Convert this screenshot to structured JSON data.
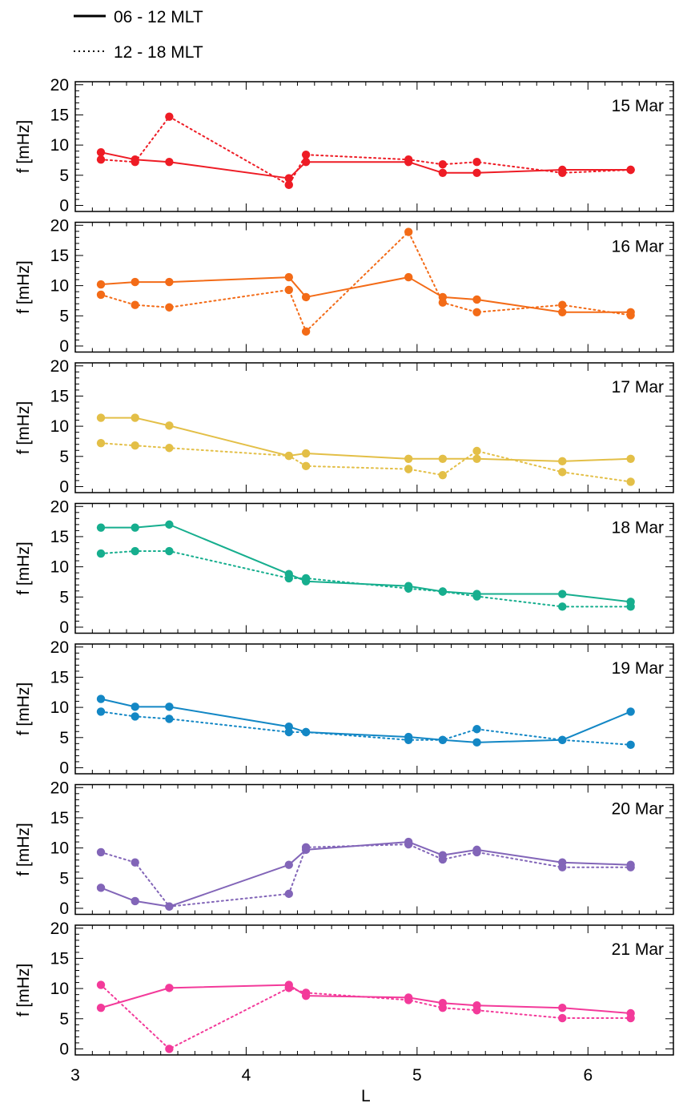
{
  "chart_data": {
    "type": "line",
    "xlabel": "L",
    "ylabel": "f [mHz]",
    "xlim": [
      3,
      6.5
    ],
    "ylim": [
      -1,
      20.5
    ],
    "x_ticks": [
      "3",
      "4",
      "5",
      "6"
    ],
    "y_ticks": [
      "0",
      "5",
      "10",
      "15",
      "20"
    ],
    "x": [
      3.15,
      3.35,
      3.55,
      4.25,
      4.35,
      4.95,
      5.15,
      5.35,
      5.85,
      6.25
    ],
    "legend": {
      "position": "top-left",
      "entries": [
        {
          "label": "06 - 12 MLT",
          "style": "solid"
        },
        {
          "label": "12 - 18 MLT",
          "style": "dotted"
        }
      ]
    },
    "panels": [
      {
        "label": "15 Mar",
        "color": "#ee1c25",
        "series": [
          {
            "name": "06 - 12 MLT",
            "style": "solid",
            "x": [
              3.15,
              3.35,
              3.55,
              4.25,
              4.35,
              4.95,
              5.15,
              5.35,
              5.85,
              6.25
            ],
            "values": [
              8.8,
              7.6,
              7.2,
              4.5,
              7.2,
              7.2,
              5.4,
              5.4,
              5.9,
              5.9
            ]
          },
          {
            "name": "12 - 18 MLT",
            "style": "dotted",
            "x": [
              3.15,
              3.35,
              3.55,
              4.25,
              4.35,
              4.95,
              5.15,
              5.35,
              5.85,
              6.25
            ],
            "values": [
              7.6,
              7.2,
              14.7,
              3.4,
              8.4,
              7.6,
              6.8,
              7.2,
              5.4,
              5.9
            ]
          }
        ]
      },
      {
        "label": "16 Mar",
        "color": "#f36b17",
        "series": [
          {
            "name": "06 - 12 MLT",
            "style": "solid",
            "x": [
              3.15,
              3.35,
              3.55,
              4.25,
              4.35,
              4.95,
              5.15,
              5.35,
              5.85,
              6.25
            ],
            "values": [
              10.2,
              10.6,
              10.6,
              11.4,
              8.1,
              11.4,
              8.1,
              7.7,
              5.6,
              5.6
            ]
          },
          {
            "name": "12 - 18 MLT",
            "style": "dotted",
            "x": [
              3.15,
              3.35,
              3.55,
              4.25,
              4.35,
              4.95,
              5.15,
              5.35,
              5.85,
              6.25
            ],
            "values": [
              8.5,
              6.8,
              6.4,
              9.3,
              2.4,
              18.9,
              7.2,
              5.6,
              6.8,
              5.1
            ]
          }
        ]
      },
      {
        "label": "17 Mar",
        "color": "#e3bf47",
        "series": [
          {
            "name": "06 - 12 MLT",
            "style": "solid",
            "x": [
              3.15,
              3.35,
              3.55,
              4.25,
              4.35,
              4.95,
              5.15,
              5.35,
              5.85,
              6.25
            ],
            "values": [
              11.4,
              11.4,
              10.1,
              5.1,
              5.5,
              4.6,
              4.6,
              4.6,
              4.2,
              4.6
            ]
          },
          {
            "name": "12 - 18 MLT",
            "style": "dotted",
            "x": [
              3.15,
              3.35,
              3.55,
              4.25,
              4.35,
              4.95,
              5.15,
              5.35,
              5.85,
              6.25
            ],
            "values": [
              7.2,
              6.8,
              6.4,
              5.1,
              3.4,
              2.9,
              1.9,
              5.9,
              2.4,
              0.8
            ]
          }
        ]
      },
      {
        "label": "18 Mar",
        "color": "#16ae8e",
        "series": [
          {
            "name": "06 - 12 MLT",
            "style": "solid",
            "x": [
              3.15,
              3.35,
              3.55,
              4.25,
              4.35,
              4.95,
              5.15,
              5.35,
              5.85,
              6.25
            ],
            "values": [
              16.5,
              16.5,
              17.0,
              8.8,
              7.6,
              6.8,
              5.9,
              5.5,
              5.5,
              4.2
            ]
          },
          {
            "name": "12 - 18 MLT",
            "style": "dotted",
            "x": [
              3.15,
              3.35,
              3.55,
              4.25,
              4.35,
              4.95,
              5.15,
              5.35,
              5.85,
              6.25
            ],
            "values": [
              12.2,
              12.6,
              12.6,
              8.1,
              8.1,
              6.4,
              5.9,
              5.1,
              3.4,
              3.4
            ]
          }
        ]
      },
      {
        "label": "19 Mar",
        "color": "#1387c5",
        "series": [
          {
            "name": "06 - 12 MLT",
            "style": "solid",
            "x": [
              3.15,
              3.35,
              3.55,
              4.25,
              4.35,
              4.95,
              5.15,
              5.35,
              5.85,
              6.25
            ],
            "values": [
              11.4,
              10.1,
              10.1,
              6.8,
              5.9,
              5.1,
              4.6,
              4.2,
              4.6,
              9.3
            ]
          },
          {
            "name": "12 - 18 MLT",
            "style": "dotted",
            "x": [
              3.15,
              3.35,
              3.55,
              4.25,
              4.35,
              4.95,
              5.15,
              5.35,
              5.85,
              6.25
            ],
            "values": [
              9.3,
              8.5,
              8.1,
              5.9,
              5.9,
              4.6,
              4.6,
              6.4,
              4.6,
              3.8
            ]
          }
        ]
      },
      {
        "label": "20 Mar",
        "color": "#8265b8",
        "series": [
          {
            "name": "06 - 12 MLT",
            "style": "solid",
            "x": [
              3.15,
              3.35,
              3.55,
              4.25,
              4.35,
              4.95,
              5.15,
              5.35,
              5.85,
              6.25
            ],
            "values": [
              3.4,
              1.2,
              0.3,
              7.2,
              9.7,
              11.0,
              8.8,
              9.7,
              7.6,
              7.2
            ]
          },
          {
            "name": "12 - 18 MLT",
            "style": "dotted",
            "x": [
              3.15,
              3.35,
              3.55,
              4.25,
              4.35,
              4.95,
              5.15,
              5.35,
              5.85,
              6.25
            ],
            "values": [
              9.3,
              7.6,
              0.3,
              2.4,
              10.1,
              10.6,
              8.1,
              9.3,
              6.8,
              6.8
            ]
          }
        ]
      },
      {
        "label": "21 Mar",
        "color": "#f33a9a",
        "series": [
          {
            "name": "06 - 12 MLT",
            "style": "solid",
            "x": [
              3.15,
              3.55,
              4.25,
              4.35,
              4.95,
              5.15,
              5.35,
              5.85,
              6.25
            ],
            "values": [
              6.8,
              10.1,
              10.6,
              8.8,
              8.5,
              7.6,
              7.2,
              6.8,
              5.9
            ]
          },
          {
            "name": "12 - 18 MLT",
            "style": "dotted",
            "x": [
              3.15,
              3.55,
              4.25,
              4.35,
              4.95,
              5.15,
              5.35,
              5.85,
              6.25
            ],
            "values": [
              10.6,
              0.0,
              10.1,
              9.3,
              8.1,
              6.8,
              6.4,
              5.1,
              5.1
            ]
          }
        ]
      }
    ]
  }
}
